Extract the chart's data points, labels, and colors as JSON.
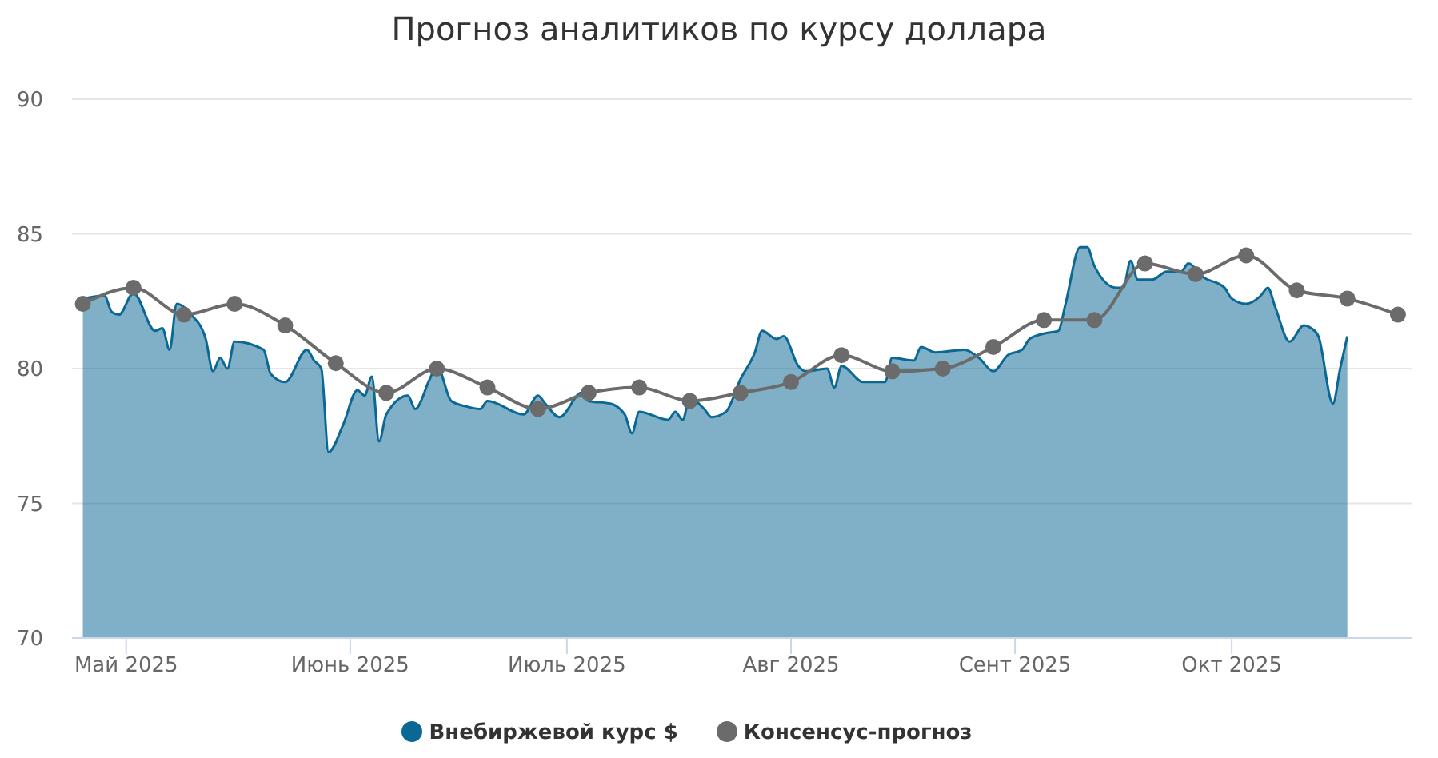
{
  "chart_data": {
    "type": "area",
    "title": "Прогноз аналитиков по курсу доллара",
    "xlim": [
      "2025-04-23T12:00",
      "2025-10-26"
    ],
    "xticks": [
      {
        "value": "2025-05-01",
        "label": "Май 2025"
      },
      {
        "value": "2025-06-01",
        "label": "Июнь 2025"
      },
      {
        "value": "2025-07-01",
        "label": "Июль 2025"
      },
      {
        "value": "2025-08-01",
        "label": "Авг 2025"
      },
      {
        "value": "2025-09-01",
        "label": "Сент 2025"
      },
      {
        "value": "2025-10-01",
        "label": "Окт 2025"
      }
    ],
    "ylim": [
      70,
      90
    ],
    "yticks": [
      70,
      75,
      80,
      85,
      90
    ],
    "grid": "y",
    "legend": "bottom",
    "series": [
      {
        "name": "Внебиржевой курс $",
        "color": "#0b6794",
        "x": [
          "2025-04-25",
          "2025-04-28",
          "2025-04-29",
          "2025-04-30",
          "2025-05-02",
          "2025-05-05",
          "2025-05-06",
          "2025-05-07",
          "2025-05-08",
          "2025-05-10",
          "2025-05-12",
          "2025-05-13",
          "2025-05-14",
          "2025-05-15",
          "2025-05-16",
          "2025-05-20",
          "2025-05-21",
          "2025-05-23",
          "2025-05-26",
          "2025-05-27",
          "2025-05-28",
          "2025-05-29",
          "2025-05-31",
          "2025-06-02",
          "2025-06-03",
          "2025-06-04",
          "2025-06-05",
          "2025-06-06",
          "2025-06-09",
          "2025-06-10",
          "2025-06-12",
          "2025-06-13",
          "2025-06-15",
          "2025-06-17",
          "2025-06-19",
          "2025-06-20",
          "2025-06-25",
          "2025-06-27",
          "2025-06-28",
          "2025-06-30",
          "2025-07-03",
          "2025-07-04",
          "2025-07-07",
          "2025-07-09",
          "2025-07-10",
          "2025-07-11",
          "2025-07-15",
          "2025-07-16",
          "2025-07-17",
          "2025-07-18",
          "2025-07-20",
          "2025-07-21",
          "2025-07-23",
          "2025-07-25",
          "2025-07-27",
          "2025-07-28",
          "2025-07-30",
          "2025-07-31",
          "2025-08-02",
          "2025-08-03",
          "2025-08-06",
          "2025-08-07",
          "2025-08-08",
          "2025-08-11",
          "2025-08-14",
          "2025-08-15",
          "2025-08-18",
          "2025-08-19",
          "2025-08-21",
          "2025-08-25",
          "2025-08-27",
          "2025-08-29",
          "2025-08-31",
          "2025-09-02",
          "2025-09-03",
          "2025-09-05",
          "2025-09-07",
          "2025-09-08",
          "2025-09-10",
          "2025-09-11",
          "2025-09-12",
          "2025-09-15",
          "2025-09-16",
          "2025-09-17",
          "2025-09-18",
          "2025-09-20",
          "2025-09-22",
          "2025-09-24",
          "2025-09-25",
          "2025-09-27",
          "2025-09-30",
          "2025-10-01",
          "2025-10-03",
          "2025-10-05",
          "2025-10-06",
          "2025-10-07",
          "2025-10-09",
          "2025-10-11",
          "2025-10-12",
          "2025-10-13",
          "2025-10-15",
          "2025-10-16",
          "2025-10-17"
        ],
        "values": [
          82.6,
          82.7,
          82.1,
          82.0,
          82.8,
          81.4,
          81.5,
          80.7,
          82.4,
          82.0,
          81.1,
          79.9,
          80.4,
          80.0,
          81.0,
          80.7,
          79.8,
          79.5,
          80.7,
          80.3,
          80.0,
          76.9,
          77.9,
          79.2,
          79.0,
          79.7,
          77.3,
          78.3,
          79.0,
          78.5,
          79.6,
          80.1,
          78.8,
          78.6,
          78.5,
          78.8,
          78.3,
          79.0,
          78.7,
          78.2,
          79.1,
          78.8,
          78.7,
          78.3,
          77.6,
          78.4,
          78.1,
          78.4,
          78.1,
          78.9,
          78.5,
          78.2,
          78.4,
          79.6,
          80.6,
          81.4,
          81.1,
          81.2,
          80.1,
          79.9,
          80.0,
          79.3,
          80.1,
          79.5,
          79.5,
          80.4,
          80.3,
          80.8,
          80.6,
          80.7,
          80.4,
          79.9,
          80.5,
          80.7,
          81.1,
          81.3,
          81.4,
          82.4,
          84.5,
          84.5,
          83.8,
          83.0,
          83.0,
          84.0,
          83.3,
          83.3,
          83.6,
          83.6,
          83.9,
          83.4,
          83.0,
          82.6,
          82.4,
          82.7,
          83.0,
          82.3,
          81.0,
          81.6,
          81.5,
          81.2,
          78.7,
          80.0,
          81.2
        ]
      },
      {
        "name": "Консенсус-прогноз",
        "type": "line",
        "color": "#6b6b6b",
        "marker": "circle",
        "x": [
          "2025-04-25",
          "2025-05-02",
          "2025-05-09",
          "2025-05-16",
          "2025-05-23",
          "2025-05-30",
          "2025-06-06",
          "2025-06-13",
          "2025-06-20",
          "2025-06-27",
          "2025-07-04",
          "2025-07-11",
          "2025-07-18",
          "2025-07-25",
          "2025-08-01",
          "2025-08-08",
          "2025-08-15",
          "2025-08-22",
          "2025-08-29",
          "2025-09-05",
          "2025-09-12",
          "2025-09-19",
          "2025-09-26",
          "2025-10-03",
          "2025-10-10",
          "2025-10-17",
          "2025-10-24"
        ],
        "values": [
          82.4,
          83.0,
          82.0,
          82.4,
          81.6,
          80.2,
          79.1,
          80.0,
          79.3,
          78.5,
          79.1,
          79.3,
          78.8,
          79.1,
          79.5,
          80.5,
          79.9,
          80.0,
          80.8,
          81.8,
          81.8,
          83.9,
          83.5,
          84.2,
          82.9,
          82.6,
          82.0
        ]
      }
    ]
  }
}
